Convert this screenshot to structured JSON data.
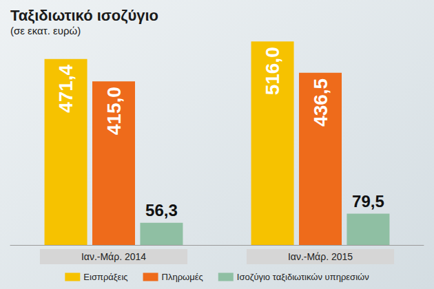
{
  "chart_data": {
    "type": "bar",
    "title": "Ταξιδιωτικό ισοζύγιο",
    "subtitle": "(σε εκατ. ευρώ)",
    "categories": [
      "Ιαν.-Μάρ. 2014",
      "Ιαν.-Μάρ. 2015"
    ],
    "series": [
      {
        "name": "Εισπράξεις",
        "color": "#f6c200",
        "values": [
          471.4,
          516.0
        ],
        "value_labels": [
          "471,4",
          "516,0"
        ]
      },
      {
        "name": "Πληρωμές",
        "color": "#ee6b1b",
        "values": [
          415.0,
          436.5
        ],
        "value_labels": [
          "415,0",
          "436,5"
        ]
      },
      {
        "name": "Ισοζύγιο ταξιδιωτικών υπηρεσιών",
        "color": "#8fbfa3",
        "values": [
          56.3,
          79.5
        ],
        "value_labels": [
          "56,3",
          "79,5"
        ]
      }
    ],
    "ylim": [
      0,
      520
    ],
    "grid": false,
    "legend": "bottom",
    "data_labels": true,
    "tick_labels": "x"
  }
}
